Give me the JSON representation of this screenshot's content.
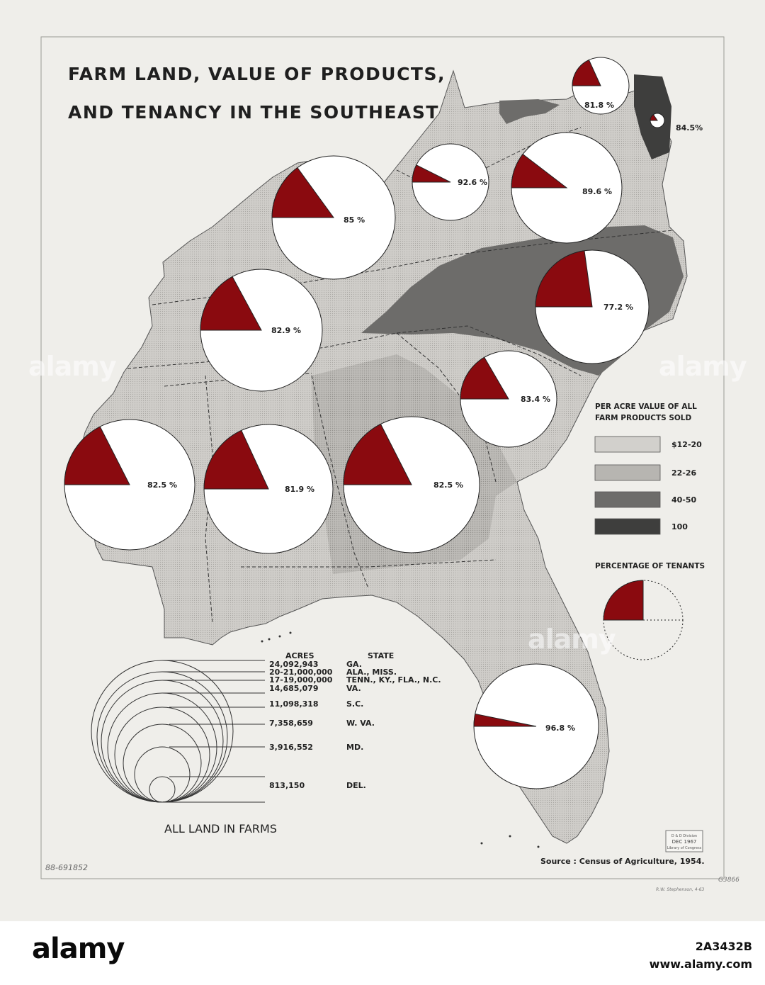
{
  "title": {
    "line1": "FARM LAND, VALUE OF PRODUCTS,",
    "line2": "AND TENANCY IN THE SOUTHEAST"
  },
  "pies": [
    {
      "label": "81.8 %",
      "value": 81.8
    },
    {
      "label": "84.5%",
      "value": 84.5
    },
    {
      "label": "92.6 %",
      "value": 92.6
    },
    {
      "label": "89.6 %",
      "value": 89.6
    },
    {
      "label": "85 %",
      "value": 85
    },
    {
      "label": "77.2 %",
      "value": 77.2
    },
    {
      "label": "82.9 %",
      "value": 82.9
    },
    {
      "label": "83.4 %",
      "value": 83.4
    },
    {
      "label": "82.5 %",
      "value": 82.5
    },
    {
      "label": "81.9 %",
      "value": 81.9
    },
    {
      "label": "82.5 %",
      "value": 82.5
    },
    {
      "label": "96.8 %",
      "value": 96.8
    }
  ],
  "legend_value": {
    "title_line1": "PER ACRE VALUE OF ALL",
    "title_line2": "FARM PRODUCTS SOLD",
    "items": [
      {
        "label": "$12-20",
        "color": "#d2d0cc"
      },
      {
        "label": "22-26",
        "color": "#b7b5b1"
      },
      {
        "label": "40-50",
        "color": "#6d6c6a"
      },
      {
        "label": "100",
        "color": "#3e3e3d"
      }
    ]
  },
  "legend_tenants": {
    "title": "PERCENTAGE OF TENANTS",
    "tenant_color": "#8a0a0f"
  },
  "farms_legend": {
    "acres_header": "ACRES",
    "state_header": "STATE",
    "rows": [
      {
        "acres": "24,092,943",
        "state": "GA."
      },
      {
        "acres": "20-21,000,000",
        "state": "ALA., MISS."
      },
      {
        "acres": "17-19,000,000",
        "state": "TENN., KY., FLA., N.C."
      },
      {
        "acres": "14,685,079",
        "state": "VA."
      },
      {
        "acres": "11,098,318",
        "state": "S.C."
      },
      {
        "acres": "7,358,659",
        "state": "W. VA."
      },
      {
        "acres": "3,916,552",
        "state": "MD."
      },
      {
        "acres": "813,150",
        "state": "DEL."
      }
    ],
    "caption": "ALL LAND IN FARMS"
  },
  "source": "Source : Census of Agriculture, 1954.",
  "handwritten": {
    "catalog": "G3866",
    "number": "88-691852",
    "signature": "R.W. Stephenson, 4-63"
  },
  "stamp": {
    "line1": "D & D Division",
    "line2": "DEC 1967",
    "line3": "Library of Congress"
  },
  "watermark": {
    "text": "alamy",
    "code": "2A3432B",
    "url": "www.alamy.com"
  }
}
